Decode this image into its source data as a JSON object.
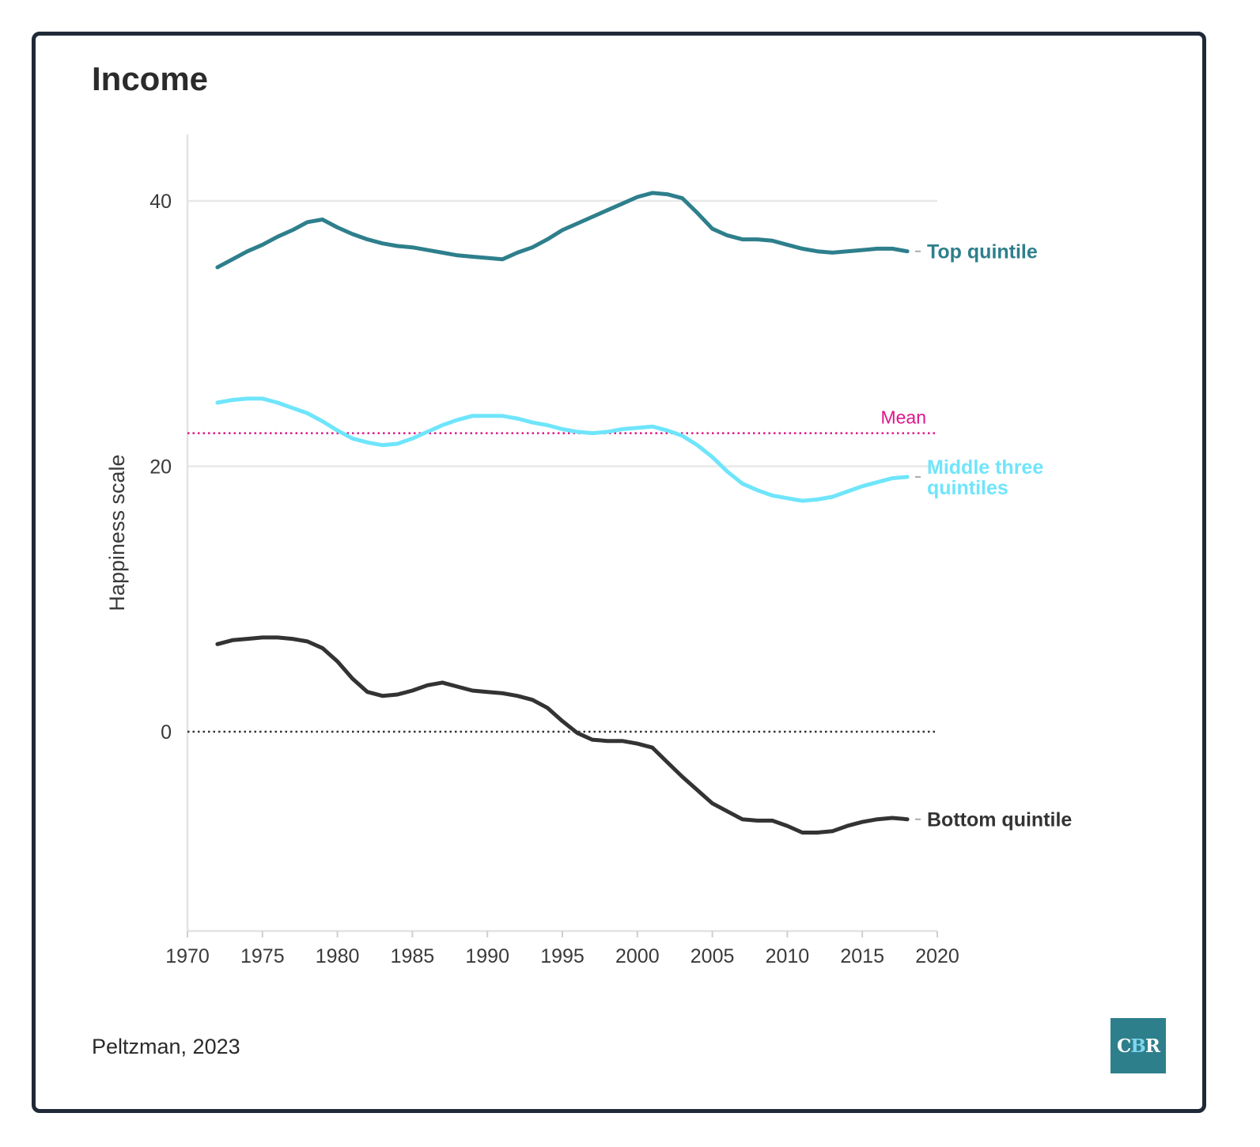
{
  "title": "Income",
  "source": "Peltzman, 2023",
  "logo": {
    "c": "C",
    "b": "B",
    "r": "R",
    "bg_color": "#2e7f8c"
  },
  "colors": {
    "top": "#2e7f8c",
    "middle": "#6fe5fb",
    "bottom": "#333333",
    "mean": "#e0158a",
    "zero": "#333333",
    "grid": "#e8e8e8"
  },
  "chart_data": {
    "type": "line",
    "title": "Income",
    "xlabel": "",
    "ylabel": "Happiness scale",
    "xlim": [
      1970,
      2020
    ],
    "ylim": [
      -15,
      45
    ],
    "x_ticks": [
      1970,
      1975,
      1980,
      1985,
      1990,
      1995,
      2000,
      2005,
      2010,
      2015,
      2020
    ],
    "y_ticks": [
      0,
      20,
      40
    ],
    "grid": "horizontal",
    "reference_lines": [
      {
        "name": "Mean",
        "value": 22.5,
        "style": "dotted"
      },
      {
        "name": "",
        "value": 0,
        "style": "dotted"
      }
    ],
    "x": [
      1972,
      1973,
      1974,
      1975,
      1976,
      1977,
      1978,
      1979,
      1980,
      1981,
      1982,
      1983,
      1984,
      1985,
      1986,
      1987,
      1988,
      1989,
      1990,
      1991,
      1992,
      1993,
      1994,
      1995,
      1996,
      1997,
      1998,
      1999,
      2000,
      2001,
      2002,
      2003,
      2004,
      2005,
      2006,
      2007,
      2008,
      2009,
      2010,
      2011,
      2012,
      2013,
      2014,
      2015,
      2016,
      2017,
      2018
    ],
    "series": [
      {
        "name": "Top quintile",
        "values": [
          35.0,
          35.6,
          36.2,
          36.7,
          37.3,
          37.8,
          38.4,
          38.6,
          38.0,
          37.5,
          37.1,
          36.8,
          36.6,
          36.5,
          36.3,
          36.1,
          35.9,
          35.8,
          35.7,
          35.6,
          36.1,
          36.5,
          37.1,
          37.8,
          38.3,
          38.8,
          39.3,
          39.8,
          40.3,
          40.6,
          40.5,
          40.2,
          39.1,
          37.9,
          37.4,
          37.1,
          37.1,
          37.0,
          36.7,
          36.4,
          36.2,
          36.1,
          36.2,
          36.3,
          36.4,
          36.4,
          36.2
        ]
      },
      {
        "name": "Middle three quintiles",
        "values": [
          24.8,
          25.0,
          25.1,
          25.1,
          24.8,
          24.4,
          24.0,
          23.4,
          22.7,
          22.1,
          21.8,
          21.6,
          21.7,
          22.1,
          22.6,
          23.1,
          23.5,
          23.8,
          23.8,
          23.8,
          23.6,
          23.3,
          23.1,
          22.8,
          22.6,
          22.5,
          22.6,
          22.8,
          22.9,
          23.0,
          22.7,
          22.3,
          21.6,
          20.7,
          19.6,
          18.7,
          18.2,
          17.8,
          17.6,
          17.4,
          17.5,
          17.7,
          18.1,
          18.5,
          18.8,
          19.1,
          19.2
        ]
      },
      {
        "name": "Bottom quintile",
        "values": [
          6.6,
          6.9,
          7.0,
          7.1,
          7.1,
          7.0,
          6.8,
          6.3,
          5.3,
          4.0,
          3.0,
          2.7,
          2.8,
          3.1,
          3.5,
          3.7,
          3.4,
          3.1,
          3.0,
          2.9,
          2.7,
          2.4,
          1.8,
          0.8,
          -0.1,
          -0.6,
          -0.7,
          -0.7,
          -0.9,
          -1.2,
          -2.3,
          -3.4,
          -4.4,
          -5.4,
          -6.0,
          -6.6,
          -6.7,
          -6.7,
          -7.1,
          -7.6,
          -7.6,
          -7.5,
          -7.1,
          -6.8,
          -6.6,
          -6.5,
          -6.6
        ]
      }
    ]
  }
}
